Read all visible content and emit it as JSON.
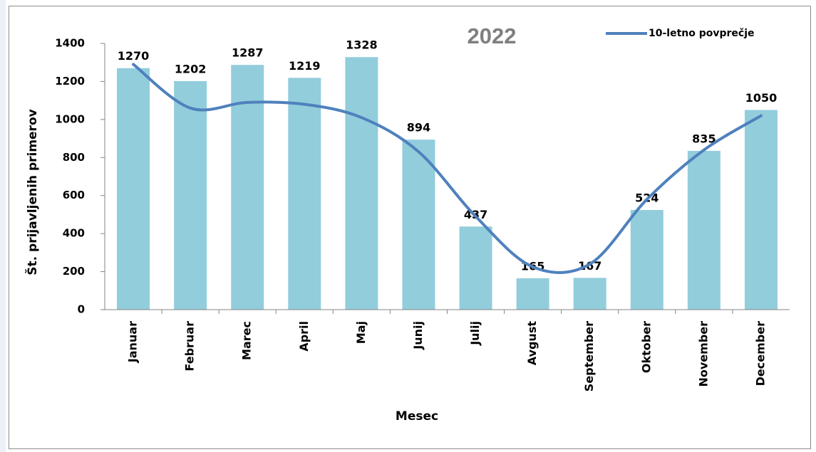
{
  "chart_data": {
    "type": "bar",
    "title": "2022",
    "x_label": "Mesec",
    "y_label": "Št. prijavljenih primerov",
    "categories": [
      "Januar",
      "Februar",
      "Marec",
      "April",
      "Maj",
      "Junij",
      "Julij",
      "Avgust",
      "September",
      "Oktober",
      "November",
      "December"
    ],
    "values": [
      1270,
      1202,
      1287,
      1219,
      1328,
      894,
      437,
      165,
      167,
      524,
      835,
      1050
    ],
    "color": "#92cddc",
    "line": {
      "name": "10-letno povprečje",
      "color": "#4f81bd",
      "smooth": true,
      "values": [
        1290,
        1060,
        1090,
        1080,
        1010,
        830,
        490,
        225,
        240,
        580,
        840,
        1020
      ]
    },
    "ylim": [
      0,
      1400
    ],
    "yticks": [
      0,
      200,
      400,
      600,
      800,
      1000,
      1200,
      1400
    ],
    "grid": false,
    "legend": "top-right"
  }
}
